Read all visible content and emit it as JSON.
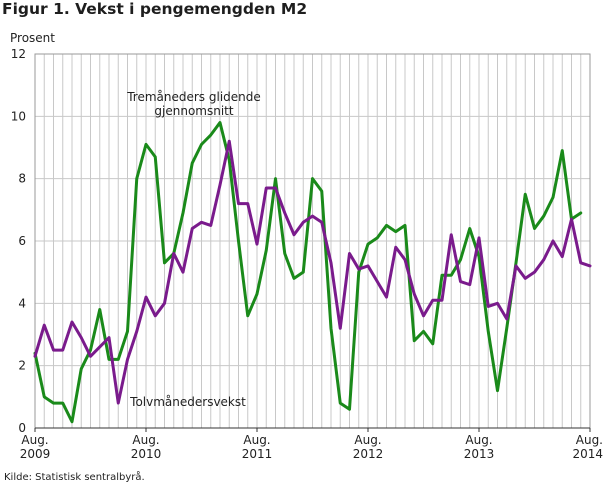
{
  "figure": {
    "title": "Figur 1. Vekst i pengemengden M2",
    "source": "Kilde: Statistisk sentralbyrå."
  },
  "chart_data": {
    "type": "line",
    "title": "Figur 1. Vekst i pengemengden M2",
    "ylabel": "Prosent",
    "xlabel": "",
    "ylim": [
      0,
      12
    ],
    "yticks": [
      0,
      2,
      4,
      6,
      8,
      10,
      12
    ],
    "grid": true,
    "x_tick_labels": [
      {
        "line1": "Aug.",
        "line2": "2009"
      },
      {
        "line1": "Aug.",
        "line2": "2010"
      },
      {
        "line1": "Aug.",
        "line2": "2011"
      },
      {
        "line1": "Aug.",
        "line2": "2012"
      },
      {
        "line1": "Aug.",
        "line2": "2013"
      },
      {
        "line1": "Aug.",
        "line2": "2014"
      }
    ],
    "months": [
      "2009-08",
      "2009-09",
      "2009-10",
      "2009-11",
      "2009-12",
      "2010-01",
      "2010-02",
      "2010-03",
      "2010-04",
      "2010-05",
      "2010-06",
      "2010-07",
      "2010-08",
      "2010-09",
      "2010-10",
      "2010-11",
      "2010-12",
      "2011-01",
      "2011-02",
      "2011-03",
      "2011-04",
      "2011-05",
      "2011-06",
      "2011-07",
      "2011-08",
      "2011-09",
      "2011-10",
      "2011-11",
      "2011-12",
      "2012-01",
      "2012-02",
      "2012-03",
      "2012-04",
      "2012-05",
      "2012-06",
      "2012-07",
      "2012-08",
      "2012-09",
      "2012-10",
      "2012-11",
      "2012-12",
      "2013-01",
      "2013-02",
      "2013-03",
      "2013-04",
      "2013-05",
      "2013-06",
      "2013-07",
      "2013-08",
      "2013-09",
      "2013-10",
      "2013-11",
      "2013-12",
      "2014-01",
      "2014-02",
      "2014-03",
      "2014-04",
      "2014-05",
      "2014-06",
      "2014-07",
      "2014-08"
    ],
    "series": [
      {
        "name": "Tremåneders glidende gjennomsnitt",
        "color": "#1a8a1a",
        "values": [
          2.4,
          1.0,
          0.8,
          0.8,
          0.2,
          1.9,
          2.5,
          3.8,
          2.2,
          2.2,
          3.1,
          8.0,
          9.1,
          8.7,
          5.3,
          5.6,
          6.9,
          8.5,
          9.1,
          9.4,
          9.8,
          8.6,
          6.0,
          3.6,
          4.3,
          5.7,
          8.0,
          5.6,
          4.8,
          5.0,
          8.0,
          7.6,
          3.2,
          0.8,
          0.6,
          5.0,
          5.9,
          6.1,
          6.5,
          6.3,
          6.5,
          2.8,
          3.1,
          2.7,
          4.9,
          4.9,
          5.4,
          6.4,
          5.5,
          3.1,
          1.2,
          3.2,
          5.3,
          7.5,
          6.4,
          6.8,
          7.4,
          8.9,
          6.7,
          6.9,
          null
        ]
      },
      {
        "name": "Tolvmånedersvekst",
        "color": "#7a1b8c",
        "values": [
          2.3,
          3.3,
          2.5,
          2.5,
          3.4,
          2.9,
          2.3,
          2.6,
          2.9,
          0.8,
          2.2,
          3.1,
          4.2,
          3.6,
          4.0,
          5.6,
          5.0,
          6.4,
          6.6,
          6.5,
          7.8,
          9.2,
          7.2,
          7.2,
          5.9,
          7.7,
          7.7,
          6.9,
          6.2,
          6.6,
          6.8,
          6.6,
          5.3,
          3.2,
          5.6,
          5.1,
          5.2,
          4.7,
          4.2,
          5.8,
          5.4,
          4.3,
          3.6,
          4.1,
          4.1,
          6.2,
          4.7,
          4.6,
          6.1,
          3.9,
          4.0,
          3.5,
          5.2,
          4.8,
          5.0,
          5.4,
          6.0,
          5.5,
          6.7,
          5.3,
          5.2
        ]
      }
    ],
    "annotations": [
      {
        "text": "Tremåneders glidende",
        "series": 0
      },
      {
        "text": "gjennomsnitt",
        "series": 0
      },
      {
        "text": "Tolvmånedersvekst",
        "series": 1
      }
    ]
  }
}
